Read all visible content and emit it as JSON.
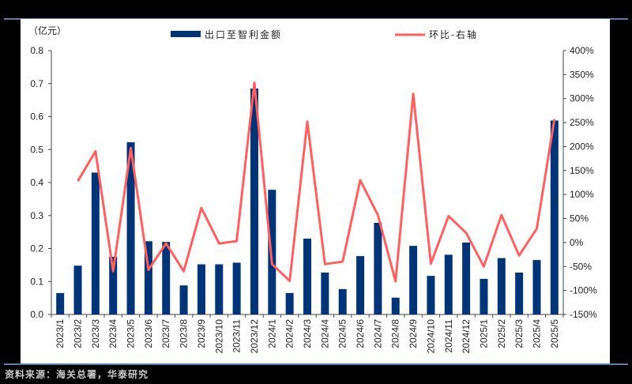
{
  "chart_data": {
    "type": "bar+line",
    "title": "",
    "unit_label": "（亿元）",
    "xlabel": "",
    "ylabel": "亿元",
    "ylabel_right": "环比",
    "ylim": [
      0,
      0.8
    ],
    "ylim_right": [
      -150,
      400
    ],
    "yticks": [
      "0.0",
      "0.1",
      "0.2",
      "0.3",
      "0.4",
      "0.5",
      "0.6",
      "0.7",
      "0.8"
    ],
    "yticks_right": [
      "-150%",
      "-100%",
      "-50%",
      "0%",
      "50%",
      "100%",
      "150%",
      "200%",
      "250%",
      "300%",
      "350%",
      "400%"
    ],
    "grid": false,
    "legend_position": "top",
    "categories": [
      "2023/1",
      "2023/2",
      "2023/3",
      "2023/4",
      "2023/5",
      "2023/6",
      "2023/7",
      "2023/8",
      "2023/9",
      "2023/10",
      "2023/11",
      "2023/12",
      "2024/1",
      "2024/2",
      "2024/3",
      "2024/4",
      "2024/5",
      "2024/6",
      "2024/7",
      "2024/8",
      "2024/9",
      "2024/10",
      "2024/11",
      "2024/12",
      "2025/1",
      "2025/2",
      "2025/3",
      "2025/4",
      "2025/5"
    ],
    "series": [
      {
        "name": "出口至智利金额",
        "type": "bar",
        "axis": "left",
        "color": "#003478",
        "values": [
          0.065,
          0.148,
          0.43,
          0.175,
          0.522,
          0.222,
          0.22,
          0.088,
          0.152,
          0.152,
          0.157,
          0.685,
          0.378,
          0.065,
          0.23,
          0.127,
          0.077,
          0.177,
          0.278,
          0.051,
          0.208,
          0.117,
          0.181,
          0.218,
          0.108,
          0.171,
          0.127,
          0.165,
          0.588
        ]
      },
      {
        "name": "环比-右轴",
        "type": "line",
        "axis": "right",
        "color": "#ff5f5f",
        "values": [
          null,
          128,
          190,
          -60,
          197,
          -57,
          -2,
          -60,
          72,
          -2,
          3,
          333,
          -45,
          -80,
          252,
          -45,
          -40,
          130,
          57,
          -81,
          310,
          -44,
          55,
          20,
          -50,
          57,
          -27,
          29,
          257
        ]
      }
    ]
  },
  "legend": {
    "bar_label": "出口至智利金额",
    "line_label": "环比-右轴"
  },
  "footer": {
    "source": "资料来源：海关总署，华泰研究"
  }
}
